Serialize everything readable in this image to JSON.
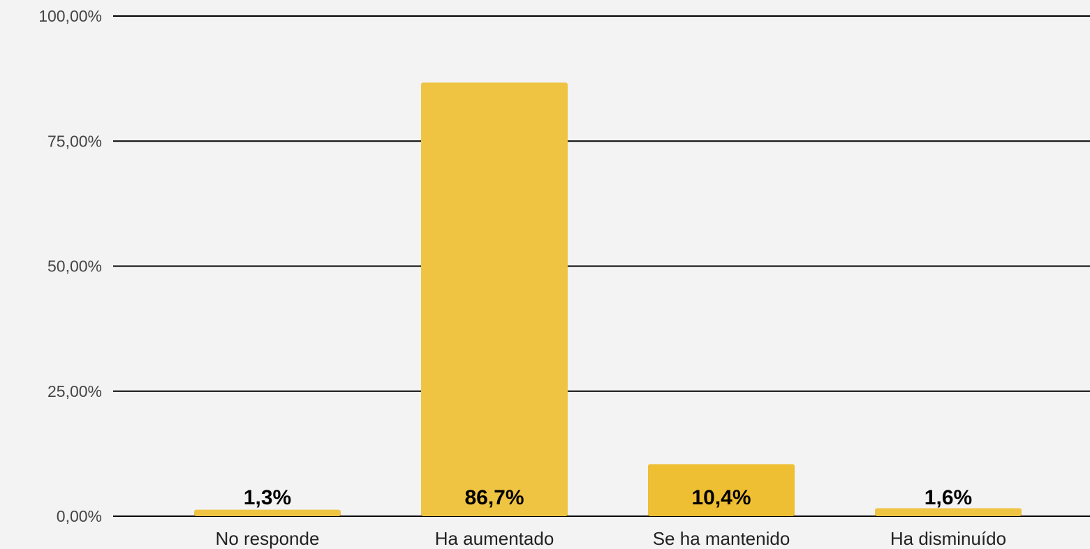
{
  "chart_data": {
    "type": "bar",
    "title": "",
    "xlabel": "",
    "ylabel": "",
    "categories": [
      "No responde",
      "Ha aumentado",
      "Se ha mantenido",
      "Ha disminuído"
    ],
    "values": [
      1.3,
      86.7,
      10.4,
      1.6
    ],
    "data_labels": [
      "1,3%",
      "86,7%",
      "10,4%",
      "1,6%"
    ],
    "ylim": [
      0,
      100
    ],
    "yticks": [
      0,
      25,
      50,
      75,
      100
    ],
    "ytick_labels": [
      "0,00%",
      "25,00%",
      "50,00%",
      "75,00%",
      "100,00%"
    ],
    "grid": true,
    "legend": "none",
    "colors": {
      "background": "#f3f3f3",
      "bar": "#f0c443",
      "bar_highlight": "#eebf32",
      "grid": "#000000"
    }
  }
}
